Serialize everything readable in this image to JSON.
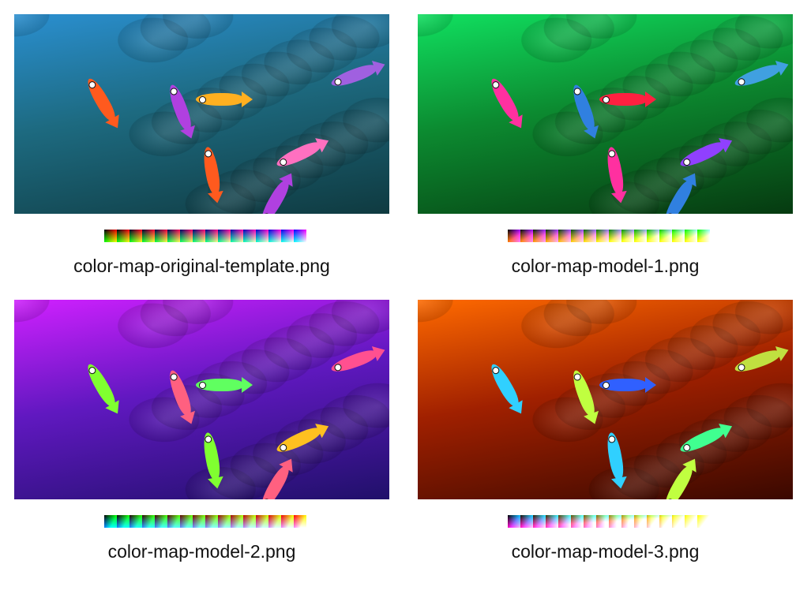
{
  "panels": [
    {
      "caption": "color-map-original-template.png",
      "colors": {
        "bg_top": "#2a8fd0",
        "bg_bottom": "#0f3a40",
        "bg_mid": "#1d6a80",
        "fish": [
          "#ff5a1e",
          "#b040e0",
          "#ffb020",
          "#ff70c0",
          "#a060e0"
        ]
      },
      "lut": {
        "x": "#ff0000",
        "y": "#00ff00",
        "tile": "#0000ff"
      }
    },
    {
      "caption": "color-map-model-1.png",
      "colors": {
        "bg_top": "#10e060",
        "bg_bottom": "#063a10",
        "bg_mid": "#0c8a30",
        "fish": [
          "#ff30a0",
          "#3080e0",
          "#ff2040",
          "#9040ff",
          "#40a0e0"
        ]
      },
      "lut": {
        "x": "#a000ff",
        "y": "#ff8000",
        "tile": "#00ff00"
      }
    },
    {
      "caption": "color-map-model-2.png",
      "colors": {
        "bg_top": "#d020ff",
        "bg_bottom": "#20106a",
        "bg_mid": "#6018c0",
        "fish": [
          "#80ff30",
          "#ff6080",
          "#60ff60",
          "#ffc020",
          "#ff5090"
        ]
      },
      "lut": {
        "x": "#00ff00",
        "y": "#0080ff",
        "tile": "#ff0000"
      }
    },
    {
      "caption": "color-map-model-3.png",
      "colors": {
        "bg_top": "#ff6a00",
        "bg_bottom": "#3a0800",
        "bg_mid": "#a02000",
        "fish": [
          "#30d0ff",
          "#c0ff40",
          "#3060ff",
          "#40ff90",
          "#c0e040"
        ]
      },
      "lut": {
        "x": "#00c0ff",
        "y": "#ff00c0",
        "tile": "#ffff00"
      }
    }
  ]
}
